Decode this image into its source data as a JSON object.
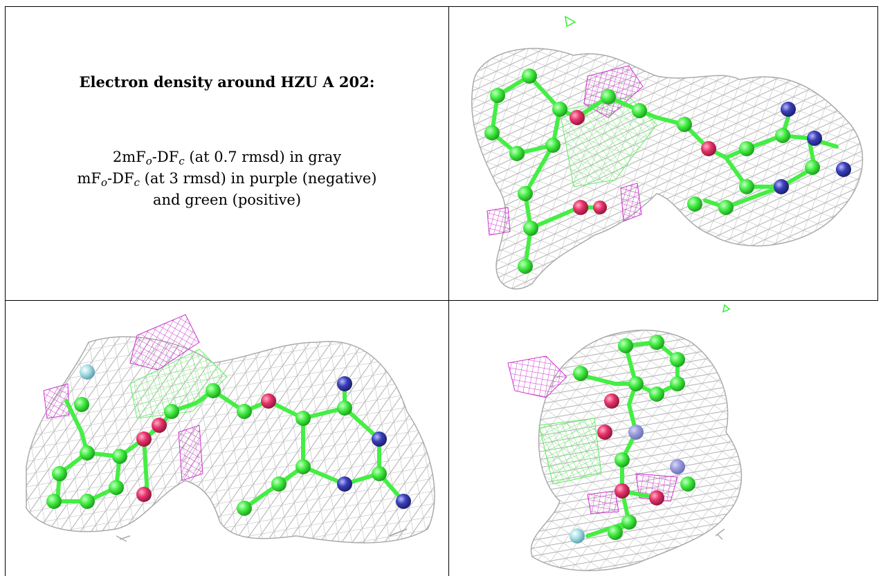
{
  "caption": {
    "title": "Electron density around HZU A 202:",
    "line1": {
      "a": "2mF",
      "b": "o",
      "c": "-DF",
      "d": "c",
      "e": " (at 0.7 rmsd) in gray"
    },
    "line2": {
      "a": "mF",
      "b": "o",
      "c": "-DF",
      "d": "c",
      "e": " (at 3 rmsd) in purple (negative)"
    },
    "line3": "and green (positive)"
  },
  "colors": {
    "mesh_2fofc": "#b0b0b0",
    "mesh_negative": "#cc33cc",
    "mesh_positive": "#33ee33",
    "carbon": "#44ee44",
    "oxygen": "#e8336b",
    "nitrogen": "#3a3fb8",
    "fluorine": "#a8e0e8"
  },
  "panels": [
    "view-top-right",
    "view-bottom-left",
    "view-bottom-right"
  ]
}
